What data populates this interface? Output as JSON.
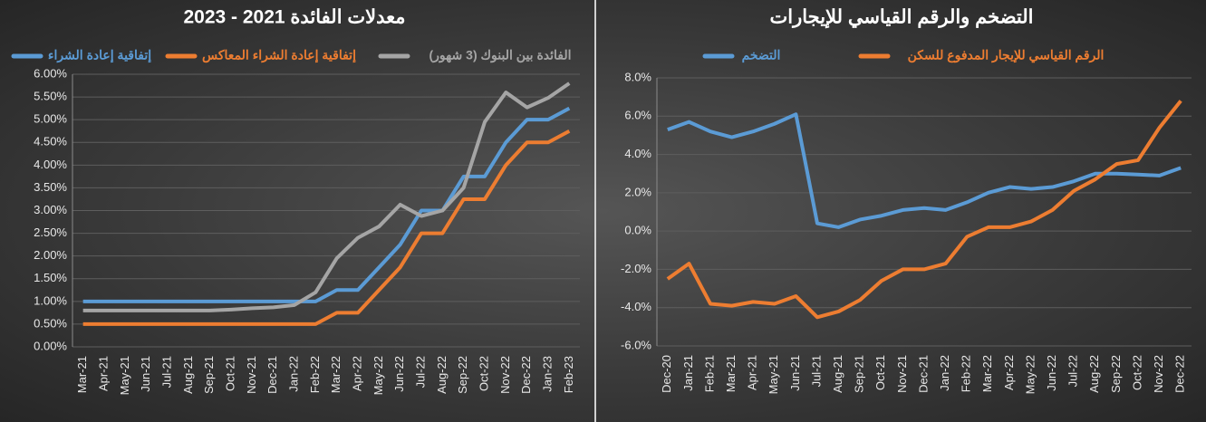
{
  "chart_data": [
    {
      "type": "line",
      "title": "معدلات الفائدة 2021 - 2023",
      "categories": [
        "Mar-21",
        "Apr-21",
        "May-21",
        "Jun-21",
        "Jul-21",
        "Aug-21",
        "Sep-21",
        "Oct-21",
        "Nov-21",
        "Dec-21",
        "Jan-22",
        "Feb-22",
        "Mar-22",
        "Apr-22",
        "May-22",
        "Jun-22",
        "Jul-22",
        "Aug-22",
        "Sep-22",
        "Oct-22",
        "Nov-22",
        "Dec-22",
        "Jan-23",
        "Feb-23"
      ],
      "series": [
        {
          "name": "إتفاقية إعادة الشراء",
          "color": "#5b9bd5",
          "values": [
            1,
            1,
            1,
            1,
            1,
            1,
            1,
            1,
            1,
            1,
            1,
            1,
            1.25,
            1.25,
            1.75,
            2.25,
            3,
            3,
            3.75,
            3.75,
            4.5,
            5,
            5,
            5.25
          ]
        },
        {
          "name": "إتفاقية إعادة الشراء المعاكس",
          "color": "#ed7d31",
          "values": [
            0.5,
            0.5,
            0.5,
            0.5,
            0.5,
            0.5,
            0.5,
            0.5,
            0.5,
            0.5,
            0.5,
            0.5,
            0.75,
            0.75,
            1.25,
            1.75,
            2.5,
            2.5,
            3.25,
            3.25,
            4,
            4.5,
            4.5,
            4.75
          ]
        },
        {
          "name": "الفائدة بين البنوك (3 شهور)",
          "color": "#a5a5a5",
          "values": [
            0.8,
            0.8,
            0.8,
            0.8,
            0.8,
            0.8,
            0.8,
            0.82,
            0.85,
            0.87,
            0.92,
            1.2,
            1.95,
            2.4,
            2.65,
            3.13,
            2.88,
            3,
            3.5,
            4.95,
            5.6,
            5.27,
            5.48,
            5.8
          ]
        }
      ],
      "ylim": [
        0,
        6
      ],
      "yticks": [
        {
          "value": 0,
          "label": "0.00%"
        },
        {
          "value": 0.5,
          "label": "0.50%"
        },
        {
          "value": 1,
          "label": "1.00%"
        },
        {
          "value": 1.5,
          "label": "1.50%"
        },
        {
          "value": 2,
          "label": "2.00%"
        },
        {
          "value": 2.5,
          "label": "2.50%"
        },
        {
          "value": 3,
          "label": "3.00%"
        },
        {
          "value": 3.5,
          "label": "3.50%"
        },
        {
          "value": 4,
          "label": "4.00%"
        },
        {
          "value": 4.5,
          "label": "4.50%"
        },
        {
          "value": 5,
          "label": "5.00%"
        },
        {
          "value": 5.5,
          "label": "5.50%"
        },
        {
          "value": 6,
          "label": "6.00%"
        }
      ],
      "grid": true
    },
    {
      "type": "line",
      "title": "التضخم والرقم القياسي للإيجارات",
      "categories": [
        "Dec-20",
        "Jan-21",
        "Feb-21",
        "Mar-21",
        "Apr-21",
        "May-21",
        "Jun-21",
        "Jul-21",
        "Aug-21",
        "Sep-21",
        "Oct-21",
        "Nov-21",
        "Dec-21",
        "Jan-22",
        "Feb-22",
        "Mar-22",
        "Apr-22",
        "May-22",
        "Jun-22",
        "Jul-22",
        "Aug-22",
        "Sep-22",
        "Oct-22",
        "Nov-22",
        "Dec-22"
      ],
      "series": [
        {
          "name": "التضخم",
          "color": "#5b9bd5",
          "values": [
            5.3,
            5.7,
            5.2,
            4.9,
            5.2,
            5.6,
            6.1,
            0.4,
            0.2,
            0.6,
            0.8,
            1.1,
            1.2,
            1.1,
            1.5,
            2,
            2.3,
            2.2,
            2.3,
            2.6,
            3,
            3,
            2.95,
            2.9,
            3.3
          ]
        },
        {
          "name": "الرقم القياسي للإيجار المدفوع للسكن",
          "color": "#ed7d31",
          "values": [
            -2.5,
            -1.7,
            -3.8,
            -3.9,
            -3.7,
            -3.8,
            -3.4,
            -4.5,
            -4.2,
            -3.6,
            -2.6,
            -2,
            -2,
            -1.7,
            -0.3,
            0.2,
            0.2,
            0.5,
            1.1,
            2.1,
            2.7,
            3.5,
            3.7,
            5.4,
            6.8
          ]
        }
      ],
      "ylim": [
        -6,
        8
      ],
      "yticks": [
        {
          "value": -6,
          "label": "-6.0%"
        },
        {
          "value": -4,
          "label": "-4.0%"
        },
        {
          "value": -2,
          "label": "-2.0%"
        },
        {
          "value": 0,
          "label": "0.0%"
        },
        {
          "value": 2,
          "label": "2.0%"
        },
        {
          "value": 4,
          "label": "4.0%"
        },
        {
          "value": 6,
          "label": "6.0%"
        },
        {
          "value": 8,
          "label": "8.0%"
        }
      ],
      "grid": true
    }
  ]
}
